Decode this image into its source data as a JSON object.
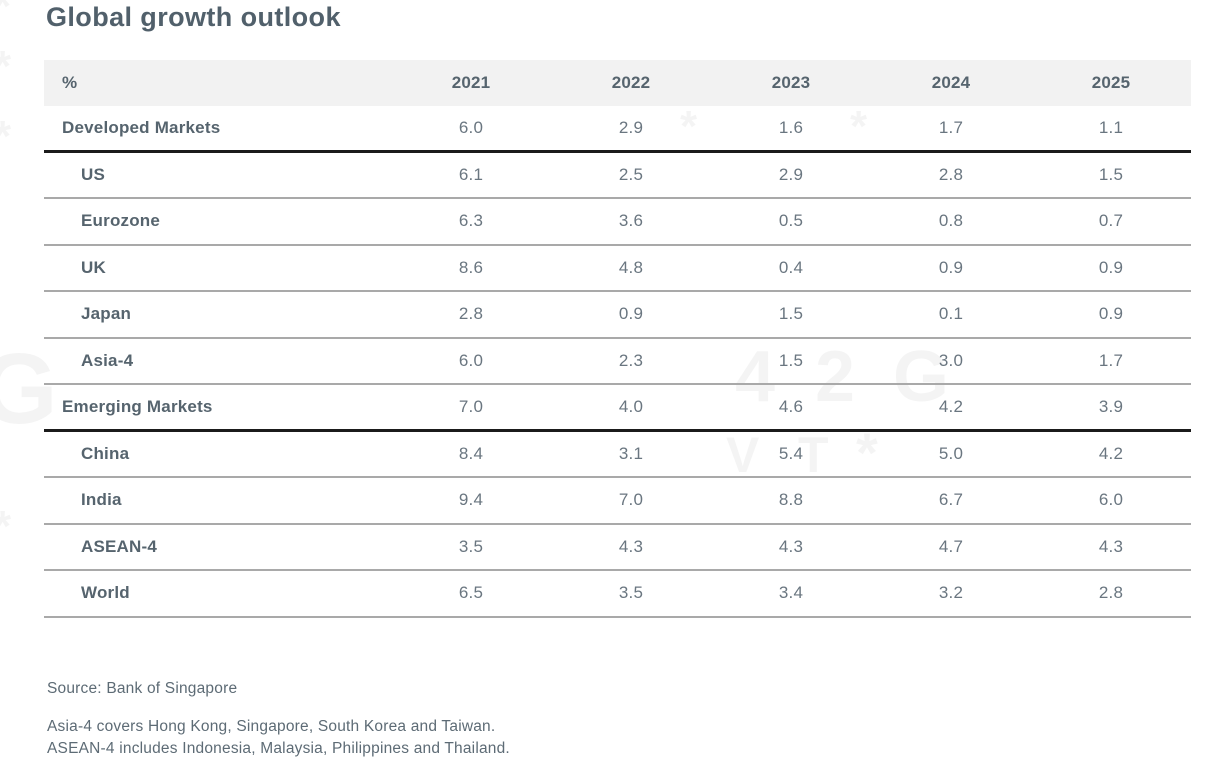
{
  "title": "Global growth outlook",
  "colors": {
    "title_text": "#51606b",
    "body_text": "#57646e",
    "value_text": "#6a7680",
    "header_band_bg": "#f2f2f2",
    "thin_divider": "#a9a9a9",
    "thick_divider": "#1b1b1b"
  },
  "table": {
    "unit_label": "%",
    "years": [
      "2021",
      "2022",
      "2023",
      "2024",
      "2025"
    ],
    "rows": [
      {
        "label": "Developed Markets",
        "group": true,
        "values": [
          "6.0",
          "2.9",
          "1.6",
          "1.7",
          "1.1"
        ]
      },
      {
        "label": "US",
        "group": false,
        "values": [
          "6.1",
          "2.5",
          "2.9",
          "2.8",
          "1.5"
        ]
      },
      {
        "label": "Eurozone",
        "group": false,
        "values": [
          "6.3",
          "3.6",
          "0.5",
          "0.8",
          "0.7"
        ]
      },
      {
        "label": "UK",
        "group": false,
        "values": [
          "8.6",
          "4.8",
          "0.4",
          "0.9",
          "0.9"
        ]
      },
      {
        "label": "Japan",
        "group": false,
        "values": [
          "2.8",
          "0.9",
          "1.5",
          "0.1",
          "0.9"
        ]
      },
      {
        "label": "Asia-4",
        "group": false,
        "values": [
          "6.0",
          "2.3",
          "1.5",
          "3.0",
          "1.7"
        ]
      },
      {
        "label": "Emerging Markets",
        "group": true,
        "values": [
          "7.0",
          "4.0",
          "4.6",
          "4.2",
          "3.9"
        ]
      },
      {
        "label": "China",
        "group": false,
        "values": [
          "8.4",
          "3.1",
          "5.4",
          "5.0",
          "4.2"
        ]
      },
      {
        "label": "India",
        "group": false,
        "values": [
          "9.4",
          "7.0",
          "8.8",
          "6.7",
          "6.0"
        ]
      },
      {
        "label": "ASEAN-4",
        "group": false,
        "values": [
          "3.5",
          "4.3",
          "4.3",
          "4.7",
          "4.3"
        ]
      },
      {
        "label": "World",
        "group": false,
        "values": [
          "6.5",
          "3.5",
          "3.4",
          "3.2",
          "2.8"
        ]
      }
    ]
  },
  "footer": {
    "source": "Source: Bank of Singapore",
    "note1": "Asia-4 covers Hong Kong, Singapore, South Korea and Taiwan.",
    "note2": "ASEAN-4 includes Indonesia, Malaysia, Philippines and Thailand."
  },
  "watermark": {
    "glyphs": [
      "*",
      "*",
      "*",
      "G",
      "*",
      "4",
      "2",
      "G",
      "V",
      "T",
      "*",
      "*",
      "*"
    ]
  },
  "chart_data": {
    "type": "table",
    "title": "Global growth outlook",
    "unit": "%",
    "columns": [
      "2021",
      "2022",
      "2023",
      "2024",
      "2025"
    ],
    "rows": [
      {
        "label": "Developed Markets",
        "values": [
          6.0,
          2.9,
          1.6,
          1.7,
          1.1
        ]
      },
      {
        "label": "US",
        "values": [
          6.1,
          2.5,
          2.9,
          2.8,
          1.5
        ]
      },
      {
        "label": "Eurozone",
        "values": [
          6.3,
          3.6,
          0.5,
          0.8,
          0.7
        ]
      },
      {
        "label": "UK",
        "values": [
          8.6,
          4.8,
          0.4,
          0.9,
          0.9
        ]
      },
      {
        "label": "Japan",
        "values": [
          2.8,
          0.9,
          1.5,
          0.1,
          0.9
        ]
      },
      {
        "label": "Asia-4",
        "values": [
          6.0,
          2.3,
          1.5,
          3.0,
          1.7
        ]
      },
      {
        "label": "Emerging Markets",
        "values": [
          7.0,
          4.0,
          4.6,
          4.2,
          3.9
        ]
      },
      {
        "label": "China",
        "values": [
          8.4,
          3.1,
          5.4,
          5.0,
          4.2
        ]
      },
      {
        "label": "India",
        "values": [
          9.4,
          7.0,
          8.8,
          6.7,
          6.0
        ]
      },
      {
        "label": "ASEAN-4",
        "values": [
          3.5,
          4.3,
          4.3,
          4.7,
          4.3
        ]
      },
      {
        "label": "World",
        "values": [
          6.5,
          3.5,
          3.4,
          3.2,
          2.8
        ]
      }
    ],
    "source": "Bank of Singapore",
    "notes": [
      "Asia-4 covers Hong Kong, Singapore, South Korea and Taiwan.",
      "ASEAN-4 includes Indonesia, Malaysia, Philippines and Thailand."
    ]
  }
}
